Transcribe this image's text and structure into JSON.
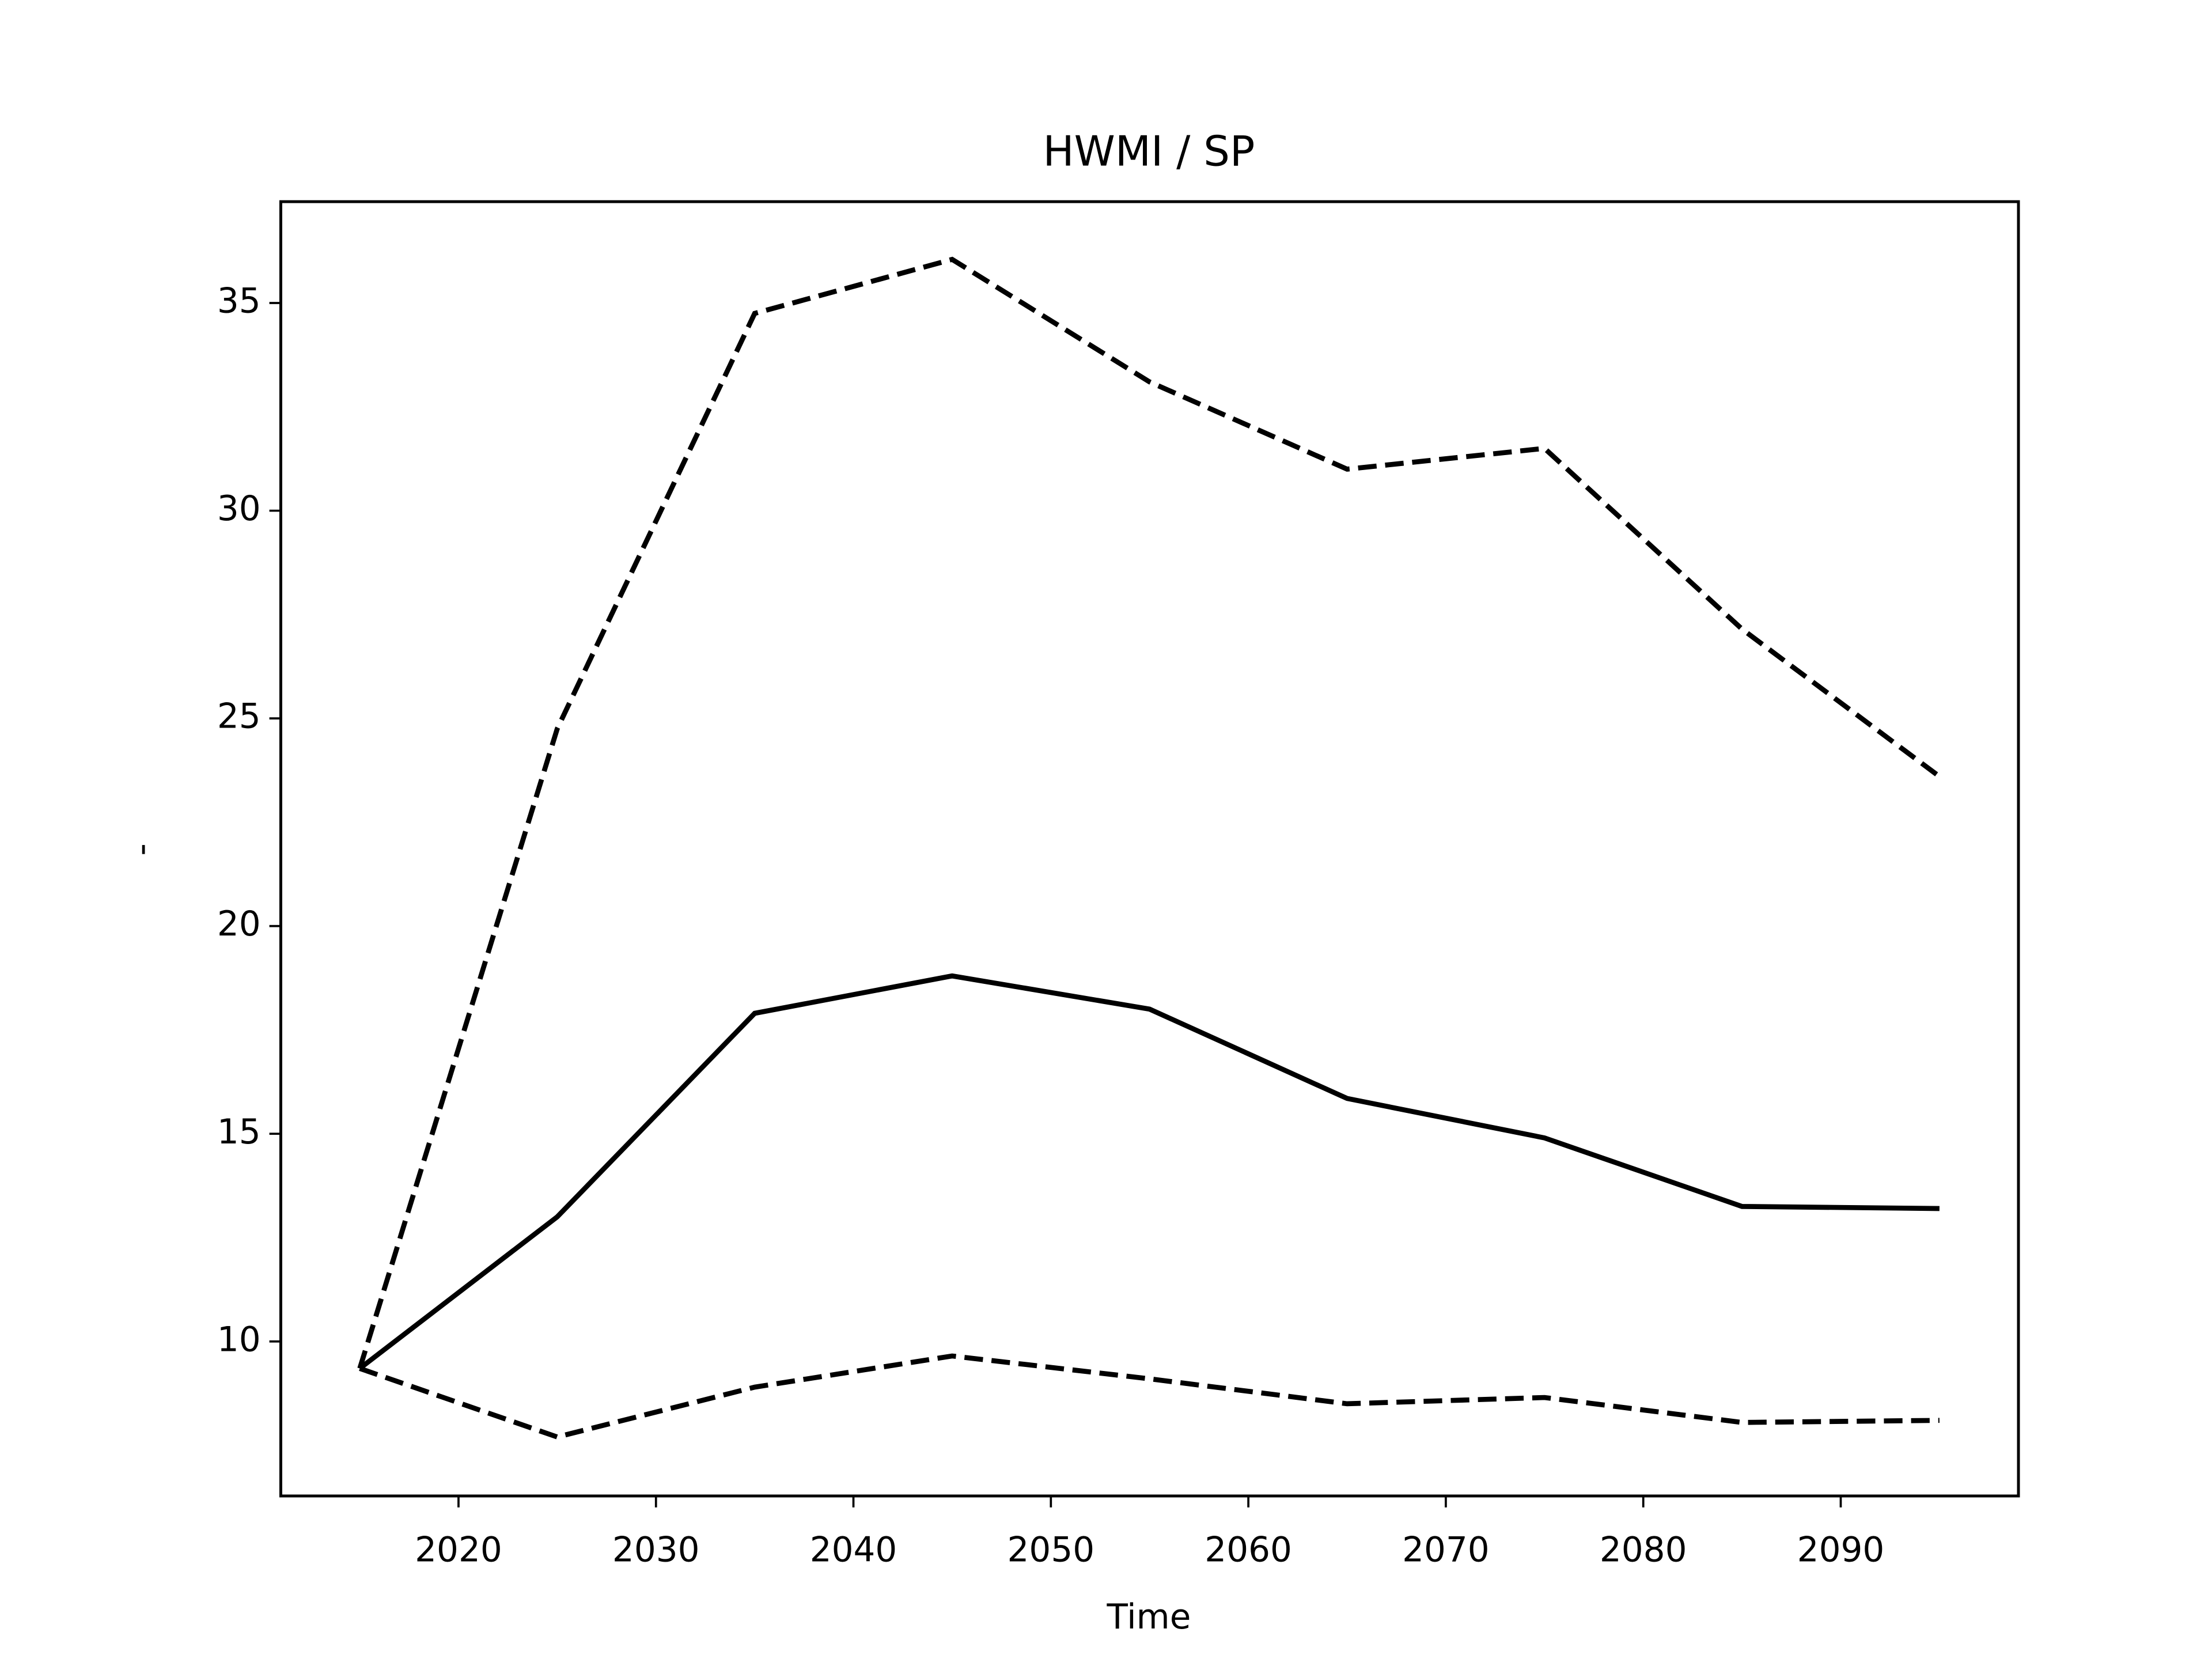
{
  "chart_data": {
    "type": "line",
    "title": "HWMI / SP",
    "x_label": "Time",
    "y_label": "-",
    "x": [
      2015,
      2025,
      2035,
      2045,
      2055,
      2065,
      2075,
      2085,
      2095
    ],
    "series": [
      {
        "color": "#000000",
        "linestyle": "solid",
        "values": [
          9.35,
          13.0,
          17.9,
          18.8,
          18.0,
          15.85,
          14.9,
          13.25,
          13.2
        ]
      },
      {
        "color": "#000000",
        "linestyle": "dashed",
        "values": [
          9.35,
          24.75,
          34.75,
          36.05,
          33.1,
          31.0,
          31.5,
          27.15,
          23.6
        ]
      },
      {
        "color": "#000000",
        "linestyle": "dashed",
        "values": [
          9.35,
          7.7,
          8.9,
          9.65,
          9.1,
          8.5,
          8.65,
          8.05,
          8.1
        ]
      }
    ],
    "xlim": [
      2011,
      2099
    ],
    "ylim": [
      6.28,
      37.44
    ],
    "xticks": [
      2020,
      2030,
      2040,
      2050,
      2060,
      2070,
      2080,
      2090
    ],
    "yticks": [
      10,
      15,
      20,
      25,
      30,
      35
    ],
    "grid": false
  }
}
